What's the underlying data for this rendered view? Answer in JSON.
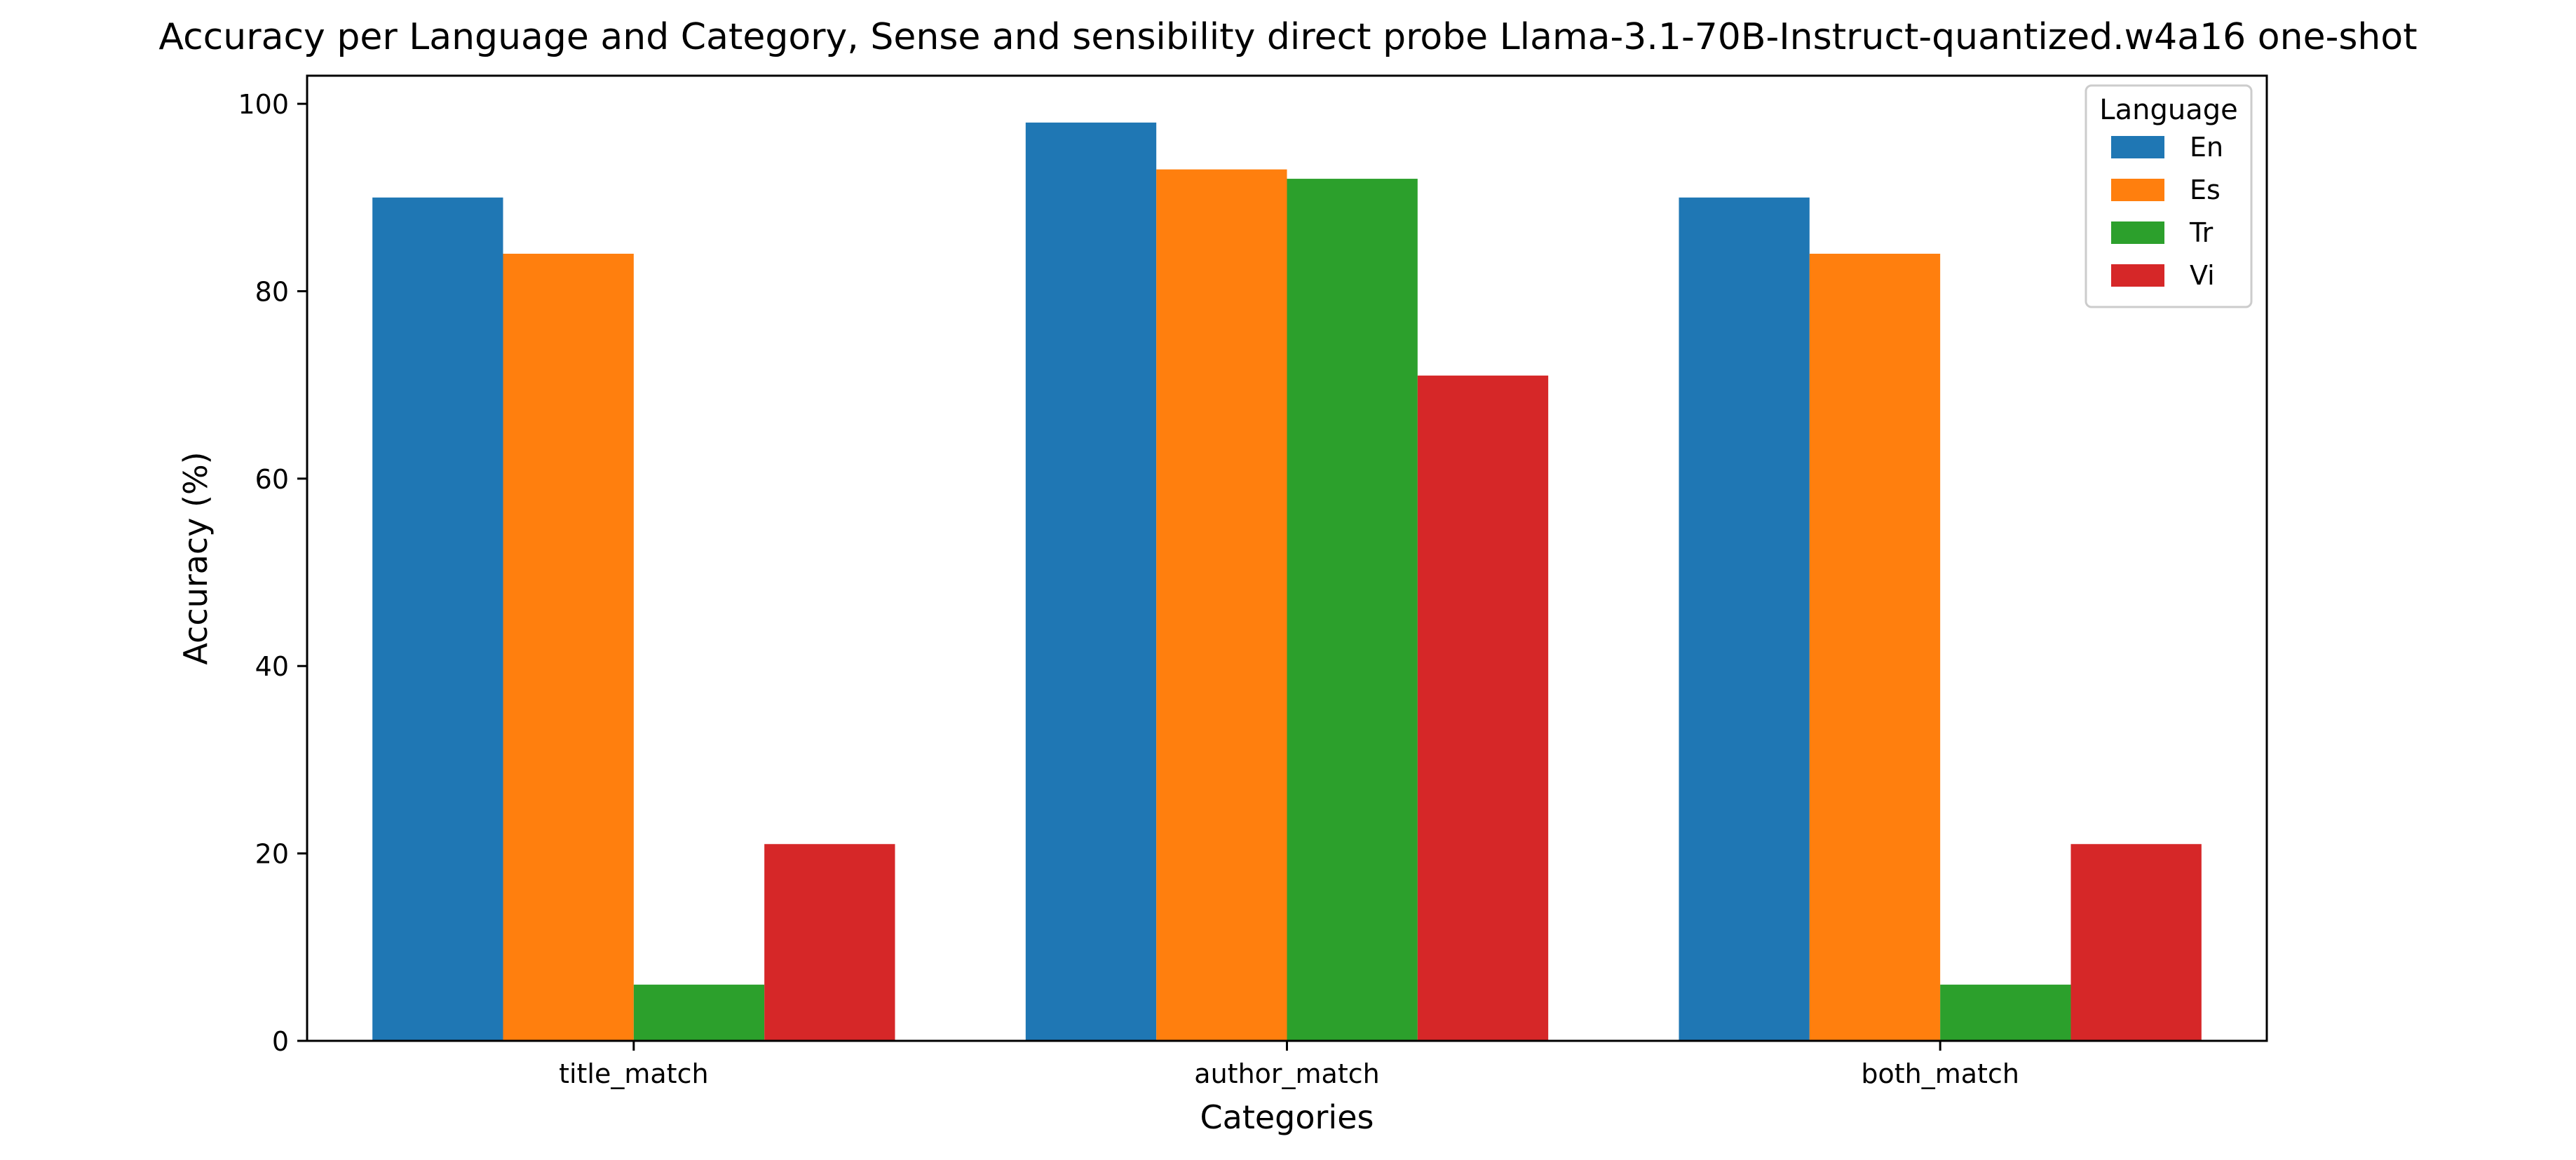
{
  "chart_data": {
    "type": "bar",
    "title": "Accuracy per Language and Category, Sense and sensibility direct probe Llama-3.1-70B-Instruct-quantized.w4a16 one-shot",
    "xlabel": "Categories",
    "ylabel": "Accuracy (%)",
    "categories": [
      "title_match",
      "author_match",
      "both_match"
    ],
    "ylim": [
      0,
      103
    ],
    "yticks": [
      "0",
      "20",
      "40",
      "60",
      "80",
      "100"
    ],
    "grid": false,
    "legend": {
      "title": "Language",
      "placement": "top-right"
    },
    "series": [
      {
        "name": "En",
        "color": "#1f77b4",
        "values": [
          90,
          98,
          90
        ]
      },
      {
        "name": "Es",
        "color": "#ff7f0e",
        "values": [
          84,
          93,
          84
        ]
      },
      {
        "name": "Tr",
        "color": "#2ca02c",
        "values": [
          6,
          92,
          6
        ]
      },
      {
        "name": "Vi",
        "color": "#d62728",
        "values": [
          21,
          71,
          21
        ]
      }
    ]
  }
}
